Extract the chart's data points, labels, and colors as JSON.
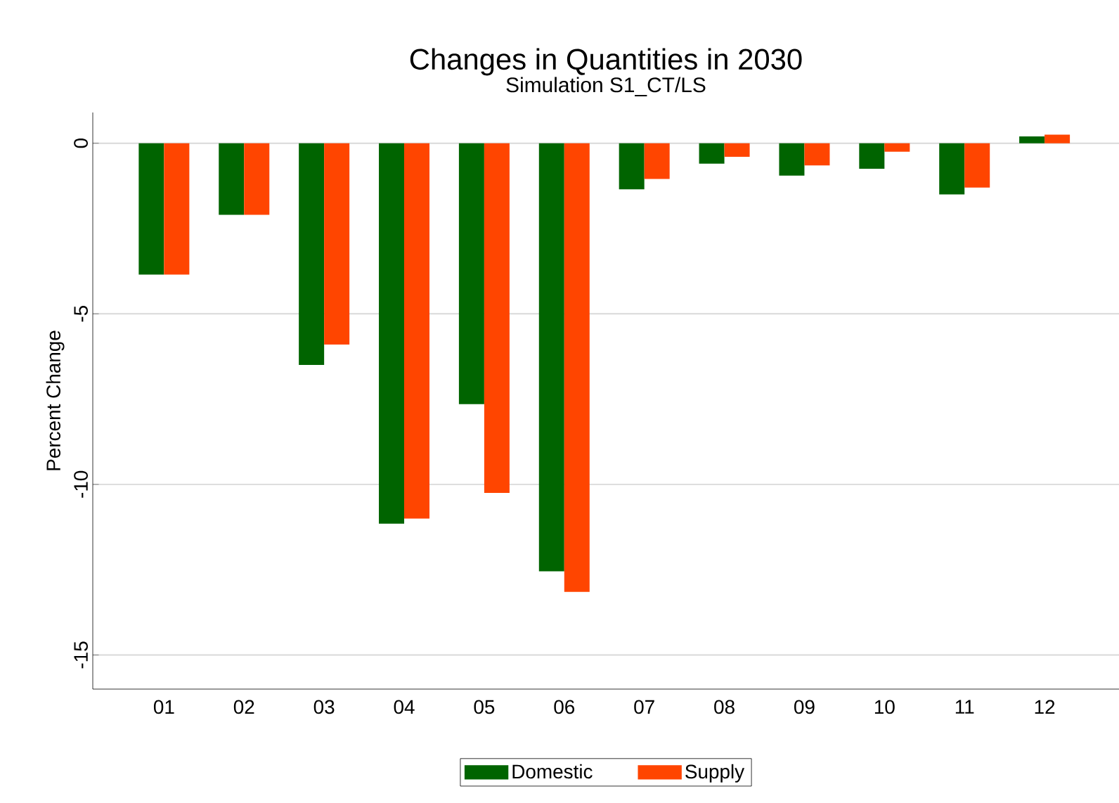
{
  "chart_data": {
    "type": "bar",
    "title": "Changes in Quantities in 2030",
    "subtitle": "Simulation S1_CT/LS",
    "ylabel": "Percent Change",
    "categories": [
      "01",
      "02",
      "03",
      "04",
      "05",
      "06",
      "07",
      "08",
      "09",
      "10",
      "11",
      "12"
    ],
    "series": [
      {
        "name": "Domestic",
        "color": "#006400",
        "values": [
          -3.85,
          -2.1,
          -6.5,
          -11.15,
          -7.65,
          -12.55,
          -1.35,
          -0.6,
          -0.95,
          -0.75,
          -1.5,
          0.2
        ]
      },
      {
        "name": "Supply",
        "color": "#ff4500",
        "values": [
          -3.85,
          -2.1,
          -5.9,
          -11.0,
          -10.25,
          -13.15,
          -1.05,
          -0.4,
          -0.65,
          -0.25,
          -1.3,
          0.25
        ]
      }
    ],
    "ylim": [
      -16,
      0.9
    ],
    "yticks": [
      -15,
      -10,
      -5,
      0
    ],
    "grid": "y",
    "legend": "bottom"
  }
}
